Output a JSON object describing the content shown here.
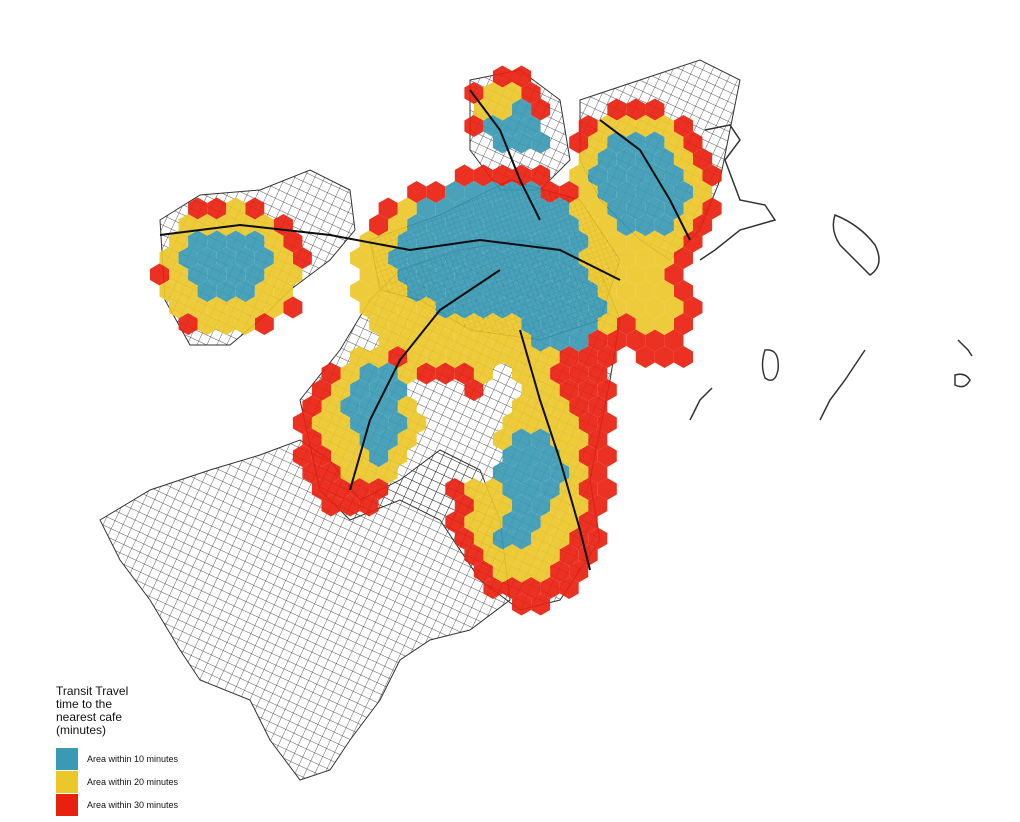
{
  "legend": {
    "title": "Transit Travel time to the nearest cafe (minutes)",
    "items": [
      {
        "label": "Area within 10 minutes",
        "color": "#3a9ab4"
      },
      {
        "label": "Area within 20 minutes",
        "color": "#ebc729"
      },
      {
        "label": "Area within 30 minutes",
        "color": "#e8200f"
      }
    ]
  },
  "colors": {
    "road": "#1a1a1a",
    "background": "#ffffff"
  }
}
